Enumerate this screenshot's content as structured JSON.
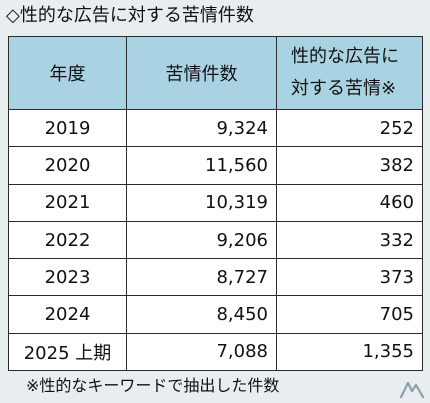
{
  "title": "◇性的な広告に対する苦情件数",
  "table": {
    "headers": [
      "年度",
      "苦情件数",
      "性的な広告に",
      "対する苦情※"
    ],
    "rows": [
      {
        "year": "2019",
        "complaints": "9,324",
        "sexual_ad_complaints": "252"
      },
      {
        "year": "2020",
        "complaints": "11,560",
        "sexual_ad_complaints": "382"
      },
      {
        "year": "2021",
        "complaints": "10,319",
        "sexual_ad_complaints": "460"
      },
      {
        "year": "2022",
        "complaints": "9,206",
        "sexual_ad_complaints": "332"
      },
      {
        "year": "2023",
        "complaints": "8,727",
        "sexual_ad_complaints": "373"
      },
      {
        "year": "2024",
        "complaints": "8,450",
        "sexual_ad_complaints": "705"
      },
      {
        "year": "2025 上期",
        "complaints": "7,088",
        "sexual_ad_complaints": "1,355"
      }
    ]
  },
  "footnote": "※性的なキーワードで抽出した件数",
  "colors": {
    "background": "#e8edf0",
    "header": "#a9d3e3",
    "cell": "#ffffff",
    "border": "#2b2b2b"
  },
  "logo_icon": "itmedia-logo-icon"
}
